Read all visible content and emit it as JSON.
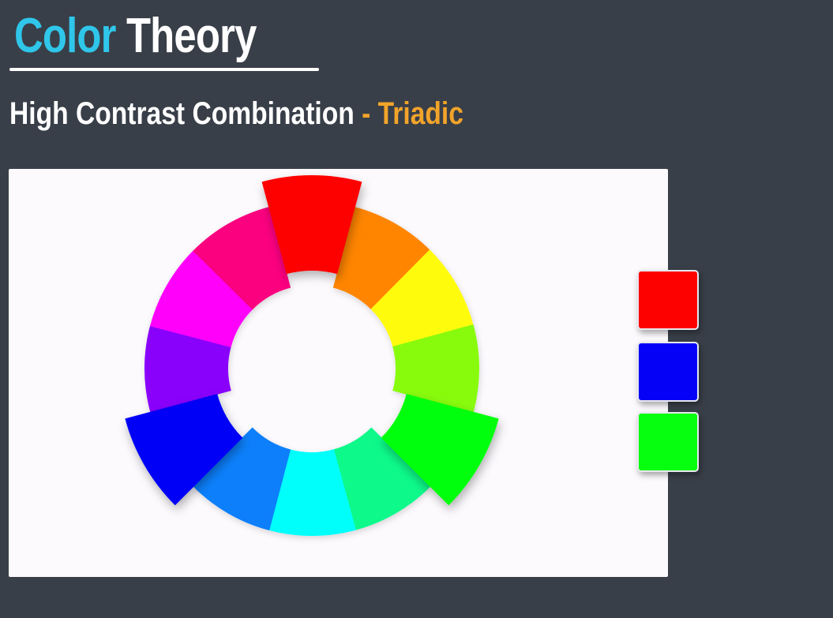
{
  "header": {
    "title_part1": "Color",
    "title_part2": "Theory",
    "subtitle_main": "High Contrast Combination",
    "subtitle_sep": " - ",
    "subtitle_scheme": "Triadic"
  },
  "colors": {
    "title_accent": "#2fc6ea",
    "subtitle_accent": "#f2a42a",
    "background": "#393f48",
    "panel": "#fcfafd"
  },
  "wheel": {
    "segments": [
      {
        "name": "red",
        "color": "#fd0000",
        "highlighted": true
      },
      {
        "name": "orange",
        "color": "#ff8506",
        "highlighted": false
      },
      {
        "name": "yellow",
        "color": "#fffb10",
        "highlighted": false
      },
      {
        "name": "yellow-green",
        "color": "#88fb0c",
        "highlighted": false
      },
      {
        "name": "green",
        "color": "#06ff0f",
        "highlighted": true
      },
      {
        "name": "spring-green",
        "color": "#10f98a",
        "highlighted": false
      },
      {
        "name": "cyan",
        "color": "#06fffb",
        "highlighted": false
      },
      {
        "name": "azure",
        "color": "#0b7ffb",
        "highlighted": false
      },
      {
        "name": "blue",
        "color": "#0500f6",
        "highlighted": true
      },
      {
        "name": "violet",
        "color": "#8900fb",
        "highlighted": false
      },
      {
        "name": "magenta",
        "color": "#ff05fb",
        "highlighted": false
      },
      {
        "name": "rose",
        "color": "#fb057f",
        "highlighted": false
      }
    ]
  },
  "swatches": [
    {
      "name": "red",
      "color": "#fd0000"
    },
    {
      "name": "blue",
      "color": "#0500f6"
    },
    {
      "name": "green",
      "color": "#06ff0f"
    }
  ]
}
